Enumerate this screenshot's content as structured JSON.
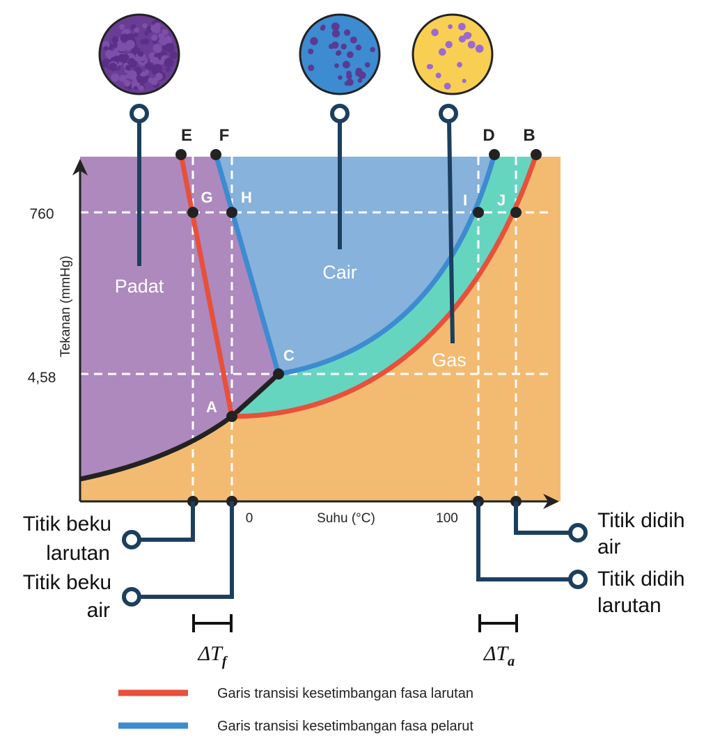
{
  "phases": {
    "solid": "Padat",
    "liquid": "Cair",
    "gas": "Gas"
  },
  "points": {
    "E": "E",
    "F": "F",
    "D": "D",
    "B": "B",
    "G": "G",
    "H": "H",
    "I": "I",
    "J": "J",
    "C": "C",
    "A": "A"
  },
  "y_axis": {
    "label": "Tekanan (mmHg)",
    "ticks": [
      "760",
      "4,58"
    ]
  },
  "x_axis": {
    "label": "Suhu (°C)",
    "ticks": [
      "0",
      "100"
    ]
  },
  "callouts": {
    "freezing_solution": [
      "Titik beku",
      "larutan"
    ],
    "freezing_water": [
      "Titik beku",
      "air"
    ],
    "boiling_water": [
      "Titik didih",
      "air"
    ],
    "boiling_solution": [
      "Titik didih",
      "larutan"
    ]
  },
  "deltas": {
    "freezing": {
      "symbol": "ΔT",
      "subscript": "f"
    },
    "boiling": {
      "symbol": "ΔT",
      "subscript": "a"
    }
  },
  "legend": [
    "Garis transisi kesetimbangan fasa larutan",
    "Garis transisi kesetimbangan fasa pelarut"
  ]
}
